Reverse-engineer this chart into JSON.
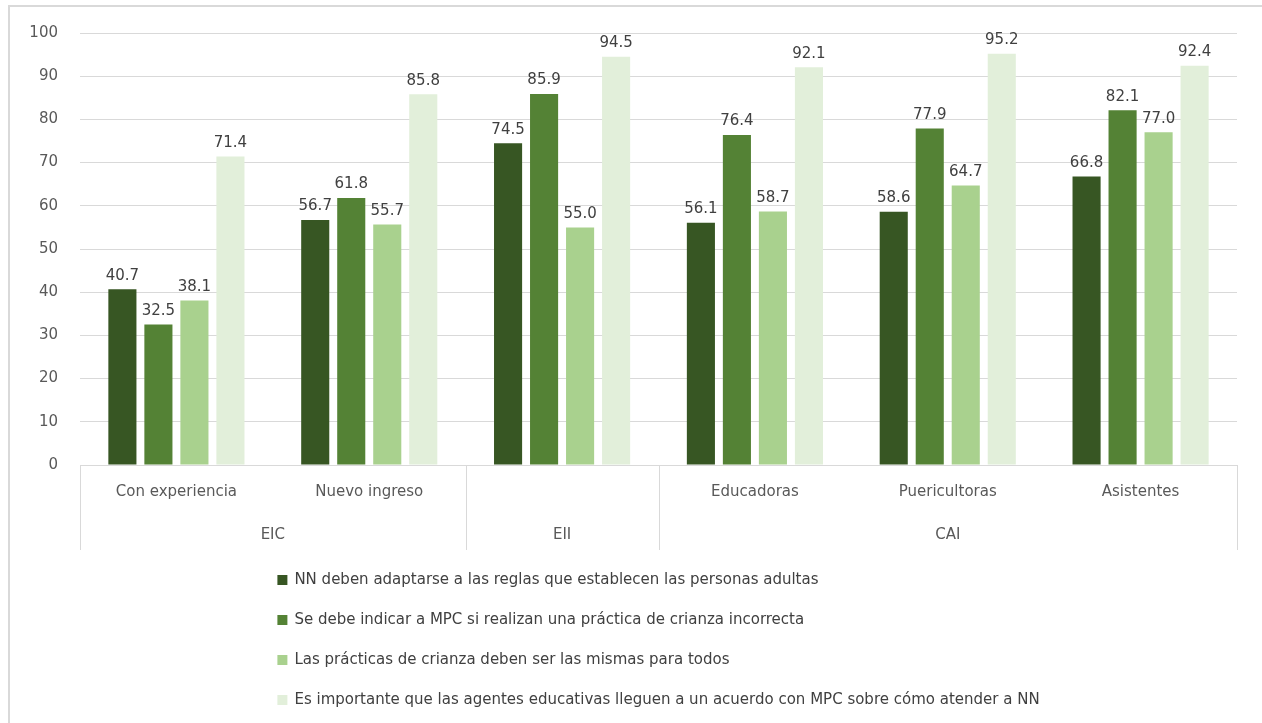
{
  "chart_data": {
    "type": "bar",
    "categories": [
      "Con experiencia",
      "Nuevo ingreso",
      null,
      "Educadoras",
      "Puericultoras",
      "Asistentes"
    ],
    "series": [
      {
        "name": "NN deben adaptarse a las reglas que establecen las personas adultas",
        "color": "#375623",
        "values": [
          40.7,
          56.7,
          74.5,
          56.1,
          58.6,
          66.8
        ],
        "value_labels": [
          "40.7",
          "56.7",
          "74.5",
          "56.1",
          "58.6",
          "66.8"
        ]
      },
      {
        "name": "Se debe indicar a MPC si realizan una práctica de crianza incorrecta",
        "color": "#548235",
        "values": [
          32.5,
          61.8,
          85.9,
          76.4,
          77.9,
          82.1
        ],
        "value_labels": [
          "32.5",
          "61.8",
          "85.9",
          "76.4",
          "77.9",
          "82.1"
        ]
      },
      {
        "name": "Las prácticas de crianza deben ser las mismas para todos",
        "color": "#a9d18e",
        "values": [
          38.1,
          55.7,
          55.0,
          58.7,
          64.7,
          77.0
        ],
        "value_labels": [
          "38.1",
          "55.7",
          "55.0",
          "58.7",
          "64.7",
          "77.0"
        ]
      },
      {
        "name": "Es importante que las agentes educativas lleguen a un acuerdo con MPC sobre cómo atender a NN",
        "color": "#e2efda",
        "values": [
          71.4,
          85.8,
          94.5,
          92.1,
          95.2,
          92.4
        ],
        "value_labels": [
          "71.4",
          "85.8",
          "94.5",
          "92.1",
          "95.2",
          "92.4"
        ]
      }
    ],
    "ylim": [
      0,
      100
    ],
    "yticks": [
      0,
      10,
      20,
      30,
      40,
      50,
      60,
      70,
      80,
      90,
      100
    ],
    "grid": "y",
    "legend": "bottom",
    "annotations": [
      "EIC",
      "EII",
      "CAI"
    ]
  }
}
